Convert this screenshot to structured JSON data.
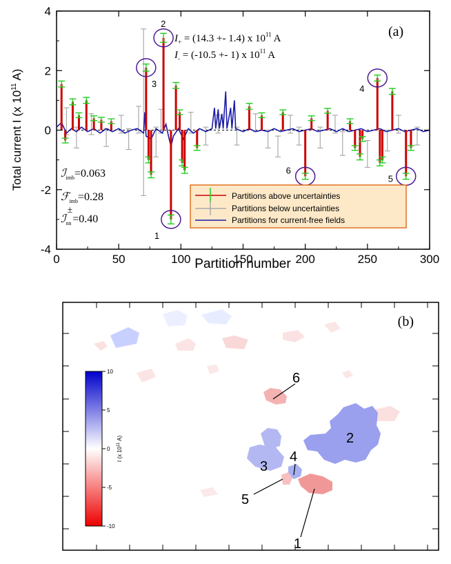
{
  "chart_data": [
    {
      "type": "line",
      "panel_label": "(a)",
      "xlabel": "Partition number",
      "ylabel": "Total current I (x 10",
      "ylabel_exp": "11",
      "ylabel_suffix": " A)",
      "xlim": [
        0,
        300
      ],
      "ylim": [
        -4,
        4
      ],
      "xticks": [
        0,
        50,
        100,
        150,
        200,
        250,
        300
      ],
      "xtick_labels": [
        "0",
        "50",
        "100",
        "150",
        "200",
        "250",
        "300"
      ],
      "yticks": [
        -4,
        -2,
        0,
        2,
        4
      ],
      "ytick_labels": [
        "-4",
        "-2",
        "0",
        "2",
        "4"
      ],
      "annotations": {
        "i_plus": {
          "sym": "I",
          "sub": "+",
          "text": " = (14.3 +- 1.4) x 10",
          "exp": "11",
          "unit": " A"
        },
        "i_minus": {
          "sym": "I",
          "sub": "-",
          "text": " = (-10.5 +- 1) x 10",
          "exp": "11",
          "unit": " A"
        },
        "metrics": [
          {
            "sym": "ℐ",
            "sub": "imb",
            "sup": "",
            "value": "=0.063"
          },
          {
            "sym": "ℱ",
            "sub": "imb",
            "sup": "",
            "value": "=0.28"
          },
          {
            "sym": "ℐ",
            "sub": "nn",
            "sup": "±",
            "value": "=0.40"
          }
        ]
      },
      "legend_position": "bottom-right",
      "legend": [
        {
          "label": "Partitions above uncertainties",
          "color": "#cc0000",
          "err_color": "#22cc22"
        },
        {
          "label": "Partitions below uncertainties",
          "color": "#aaaaaa"
        },
        {
          "label": "Partitions for current-free fields",
          "color": "#1a1aa8"
        }
      ],
      "legend_bg": "#fde9c8",
      "labeled_points": [
        {
          "label": "1",
          "x": 92,
          "y": -3.0
        },
        {
          "label": "2",
          "x": 86,
          "y": 3.1
        },
        {
          "label": "3",
          "x": 72,
          "y": 2.1
        },
        {
          "label": "4",
          "x": 258,
          "y": 1.75
        },
        {
          "label": "5",
          "x": 281,
          "y": -1.55
        },
        {
          "label": "6",
          "x": 200,
          "y": -1.55
        }
      ],
      "above_bars": [
        {
          "x": 4,
          "y": 1.55,
          "e": 0.1
        },
        {
          "x": 7,
          "y": -0.35,
          "e": 0.08
        },
        {
          "x": 13,
          "y": 0.95,
          "e": 0.1
        },
        {
          "x": 18,
          "y": 0.5,
          "e": 0.08
        },
        {
          "x": 24,
          "y": 1.0,
          "e": 0.1
        },
        {
          "x": 30,
          "y": 0.4,
          "e": 0.08
        },
        {
          "x": 36,
          "y": 0.35,
          "e": 0.08
        },
        {
          "x": 44,
          "y": 0.3,
          "e": 0.08
        },
        {
          "x": 72,
          "y": 2.1,
          "e": 0.12
        },
        {
          "x": 74,
          "y": -1.0,
          "e": 0.1
        },
        {
          "x": 76,
          "y": -1.5,
          "e": 0.1
        },
        {
          "x": 86,
          "y": 3.1,
          "e": 0.15
        },
        {
          "x": 92,
          "y": -3.0,
          "e": 0.15
        },
        {
          "x": 96,
          "y": 1.5,
          "e": 0.1
        },
        {
          "x": 99,
          "y": 0.6,
          "e": 0.08
        },
        {
          "x": 101,
          "y": -1.1,
          "e": 0.1
        },
        {
          "x": 103,
          "y": -1.35,
          "e": 0.1
        },
        {
          "x": 113,
          "y": -0.6,
          "e": 0.08
        },
        {
          "x": 155,
          "y": 0.8,
          "e": 0.1
        },
        {
          "x": 165,
          "y": 0.5,
          "e": 0.08
        },
        {
          "x": 182,
          "y": 0.6,
          "e": 0.08
        },
        {
          "x": 200,
          "y": -1.55,
          "e": 0.1
        },
        {
          "x": 205,
          "y": 0.4,
          "e": 0.08
        },
        {
          "x": 218,
          "y": 0.65,
          "e": 0.08
        },
        {
          "x": 236,
          "y": 0.3,
          "e": 0.08
        },
        {
          "x": 240,
          "y": -0.6,
          "e": 0.08
        },
        {
          "x": 244,
          "y": -0.9,
          "e": 0.1
        },
        {
          "x": 246,
          "y": -0.3,
          "e": 0.08
        },
        {
          "x": 258,
          "y": 1.75,
          "e": 0.1
        },
        {
          "x": 260,
          "y": -1.1,
          "e": 0.1
        },
        {
          "x": 262,
          "y": -1.0,
          "e": 0.1
        },
        {
          "x": 270,
          "y": 1.3,
          "e": 0.1
        },
        {
          "x": 281,
          "y": -1.55,
          "e": 0.1
        },
        {
          "x": 285,
          "y": -0.6,
          "e": 0.08
        }
      ],
      "below_bars": [
        {
          "x": 8,
          "y": 0.3,
          "e": 0.45
        },
        {
          "x": 16,
          "y": -0.25,
          "e": 0.35
        },
        {
          "x": 28,
          "y": 0.2,
          "e": 0.35
        },
        {
          "x": 40,
          "y": -0.25,
          "e": 0.3
        },
        {
          "x": 52,
          "y": 0.2,
          "e": 0.3
        },
        {
          "x": 58,
          "y": -0.3,
          "e": 0.35
        },
        {
          "x": 66,
          "y": 0.35,
          "e": 0.45
        },
        {
          "x": 70,
          "y": 0.6,
          "e": 2.8
        },
        {
          "x": 80,
          "y": -0.4,
          "e": 0.5
        },
        {
          "x": 84,
          "y": 0.3,
          "e": 0.4
        },
        {
          "x": 108,
          "y": 0.25,
          "e": 0.35
        },
        {
          "x": 120,
          "y": -0.2,
          "e": 0.3
        },
        {
          "x": 130,
          "y": 0.2,
          "e": 0.3
        },
        {
          "x": 145,
          "y": -0.2,
          "e": 0.3
        },
        {
          "x": 160,
          "y": 0.25,
          "e": 0.3
        },
        {
          "x": 170,
          "y": -0.3,
          "e": 0.3
        },
        {
          "x": 178,
          "y": -0.55,
          "e": 0.35
        },
        {
          "x": 188,
          "y": 0.2,
          "e": 0.3
        },
        {
          "x": 195,
          "y": -0.2,
          "e": 0.3
        },
        {
          "x": 212,
          "y": -0.25,
          "e": 0.35
        },
        {
          "x": 224,
          "y": 0.2,
          "e": 0.3
        },
        {
          "x": 230,
          "y": -0.45,
          "e": 0.4
        },
        {
          "x": 250,
          "y": -0.8,
          "e": 0.45
        },
        {
          "x": 266,
          "y": -0.35,
          "e": 0.35
        },
        {
          "x": 275,
          "y": 0.2,
          "e": 0.3
        },
        {
          "x": 290,
          "y": -0.2,
          "e": 0.3
        }
      ],
      "current_free_line": [
        [
          0,
          0.1
        ],
        [
          4,
          0.25
        ],
        [
          8,
          -0.1
        ],
        [
          12,
          0.05
        ],
        [
          16,
          -0.05
        ],
        [
          20,
          0.1
        ],
        [
          25,
          -0.05
        ],
        [
          30,
          0.05
        ],
        [
          35,
          -0.1
        ],
        [
          40,
          0.05
        ],
        [
          45,
          -0.05
        ],
        [
          50,
          0.05
        ],
        [
          55,
          -0.1
        ],
        [
          60,
          0.0
        ],
        [
          65,
          0.05
        ],
        [
          70,
          -0.1
        ],
        [
          71,
          0.6
        ],
        [
          72,
          -0.2
        ],
        [
          76,
          -0.3
        ],
        [
          80,
          0.05
        ],
        [
          85,
          -0.1
        ],
        [
          88,
          0.2
        ],
        [
          90,
          -0.2
        ],
        [
          92,
          -0.55
        ],
        [
          94,
          -0.2
        ],
        [
          98,
          0.05
        ],
        [
          102,
          -0.3
        ],
        [
          106,
          0.05
        ],
        [
          110,
          -0.1
        ],
        [
          115,
          0.05
        ],
        [
          120,
          -0.05
        ],
        [
          125,
          0.05
        ],
        [
          127,
          0.75
        ],
        [
          128,
          0.05
        ],
        [
          130,
          0.7
        ],
        [
          131,
          0.05
        ],
        [
          133,
          0.55
        ],
        [
          134,
          0.05
        ],
        [
          136,
          1.3
        ],
        [
          137,
          0.05
        ],
        [
          140,
          0.75
        ],
        [
          141,
          0.05
        ],
        [
          143,
          1.0
        ],
        [
          144,
          0.05
        ],
        [
          150,
          -0.05
        ],
        [
          155,
          0.05
        ],
        [
          160,
          -0.05
        ],
        [
          165,
          0.0
        ],
        [
          170,
          -0.05
        ],
        [
          175,
          0.05
        ],
        [
          180,
          -0.05
        ],
        [
          185,
          0.0
        ],
        [
          190,
          0.05
        ],
        [
          195,
          -0.05
        ],
        [
          200,
          0.0
        ],
        [
          205,
          0.05
        ],
        [
          210,
          -0.05
        ],
        [
          215,
          0.0
        ],
        [
          220,
          0.05
        ],
        [
          225,
          -0.05
        ],
        [
          230,
          0.05
        ],
        [
          235,
          -0.05
        ],
        [
          240,
          0.0
        ],
        [
          245,
          0.05
        ],
        [
          250,
          -0.05
        ],
        [
          255,
          0.0
        ],
        [
          260,
          0.05
        ],
        [
          265,
          -0.05
        ],
        [
          270,
          0.0
        ],
        [
          275,
          0.05
        ],
        [
          280,
          -0.05
        ],
        [
          285,
          0.0
        ],
        [
          290,
          0.05
        ],
        [
          295,
          -0.05
        ],
        [
          300,
          0.0
        ]
      ]
    },
    {
      "type": "heatmap",
      "panel_label": "(b)",
      "colorbar": {
        "label": "I (x 10",
        "label_exp": "11",
        "label_suffix": " A)",
        "range": [
          -10,
          10
        ],
        "ticks": [
          -10,
          -5,
          0,
          5,
          10
        ],
        "tick_labels": [
          "-10",
          "-5",
          "0",
          "5",
          "10"
        ],
        "color_min": "#ee0000",
        "color_mid": "#ffffff",
        "color_max": "#0000cc"
      },
      "region_labels": [
        "1",
        "2",
        "3",
        "4",
        "5",
        "6"
      ]
    }
  ]
}
